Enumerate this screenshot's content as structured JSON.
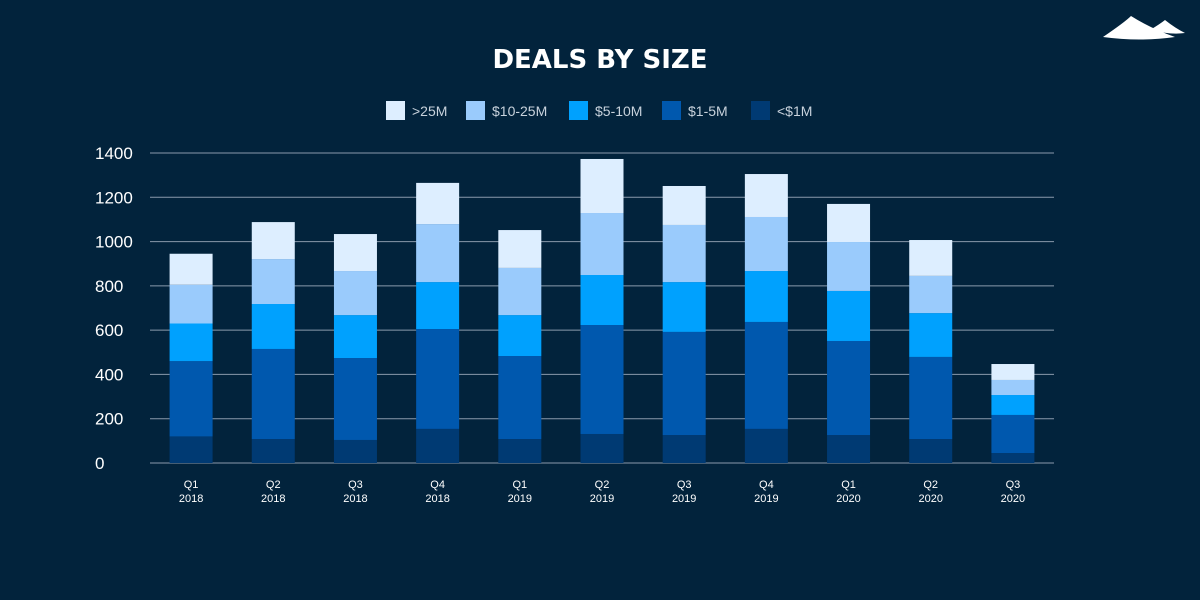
{
  "chart_data": {
    "type": "bar",
    "stacked": true,
    "title": "DEALS BY SIZE",
    "xlabel": "",
    "ylabel": "",
    "ylim": [
      0,
      1400
    ],
    "yticks": [
      0,
      200,
      400,
      600,
      800,
      1000,
      1200,
      1400
    ],
    "grid": true,
    "legend_position": "top",
    "categories": [
      [
        "Q1",
        "2018"
      ],
      [
        "Q2",
        "2018"
      ],
      [
        "Q3",
        "2018"
      ],
      [
        "Q4",
        "2018"
      ],
      [
        "Q1",
        "2019"
      ],
      [
        "Q2",
        "2019"
      ],
      [
        "Q3",
        "2019"
      ],
      [
        "Q4",
        "2019"
      ],
      [
        "Q1",
        "2020"
      ],
      [
        "Q2",
        "2020"
      ],
      [
        "Q3",
        "2020"
      ]
    ],
    "legend_order": [
      ">25M",
      "$10-25M",
      "$5-10M",
      "$1-5M",
      "<$1M"
    ],
    "series": [
      {
        "name": "<$1M",
        "color": "#003a73",
        "values": [
          120,
          108,
          104,
          154,
          108,
          131,
          126,
          154,
          126,
          108,
          45
        ]
      },
      {
        "name": "$1-5M",
        "color": "#0058ae",
        "values": [
          340,
          407,
          370,
          451,
          375,
          492,
          466,
          483,
          425,
          371,
          172
        ]
      },
      {
        "name": "$5-10M",
        "color": "#00a1fe",
        "values": [
          170,
          203,
          194,
          212,
          185,
          226,
          225,
          230,
          226,
          198,
          90
        ]
      },
      {
        "name": "$10-25M",
        "color": "#9acbfc",
        "values": [
          175,
          203,
          199,
          262,
          213,
          280,
          258,
          244,
          221,
          168,
          68
        ]
      },
      {
        "name": ">25M",
        "color": "#ddeeff",
        "values": [
          140,
          167,
          167,
          186,
          171,
          244,
          176,
          194,
          172,
          162,
          72
        ]
      }
    ]
  },
  "colors": {
    "background": "#02233c",
    "grid": "#8a9aab",
    "logo": "#ffffff"
  }
}
